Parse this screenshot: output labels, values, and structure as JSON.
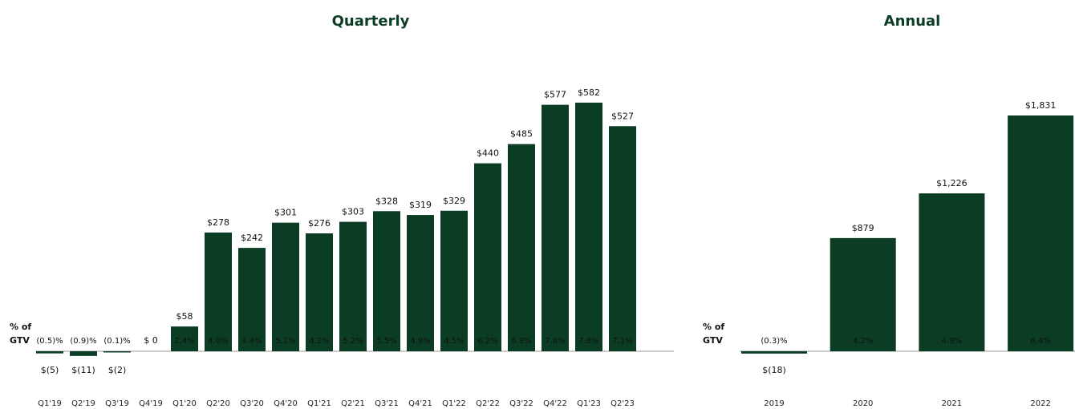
{
  "chart_data": [
    {
      "type": "bar",
      "title": "Quarterly",
      "color": "#0b3d25",
      "gtv_axis_label": [
        "% of",
        "GTV"
      ],
      "categories": [
        "Q1'19",
        "Q2'19",
        "Q3'19",
        "Q4'19",
        "Q1'20",
        "Q2'20",
        "Q3'20",
        "Q4'20",
        "Q1'21",
        "Q2'21",
        "Q3'21",
        "Q4'21",
        "Q1'22",
        "Q2'22",
        "Q3'22",
        "Q4'22",
        "Q1'23",
        "Q2'23"
      ],
      "values": [
        -5,
        -11,
        -2,
        0,
        58,
        278,
        242,
        301,
        276,
        303,
        328,
        319,
        329,
        440,
        485,
        577,
        582,
        527
      ],
      "value_labels": [
        "$(5)",
        "$(11)",
        "$(2)",
        "$ 0",
        "$58",
        "$278",
        "$242",
        "$301",
        "$276",
        "$303",
        "$328",
        "$319",
        "$329",
        "$440",
        "$485",
        "$577",
        "$582",
        "$527"
      ],
      "gtv_labels": [
        "(0.5)%",
        "(0.9)%",
        "(0.1)%",
        null,
        "2.4%",
        "4.0%",
        "4.4%",
        "5.1%",
        "4.2%",
        "5.2%",
        "5.5%",
        "4.9%",
        "4.5%",
        "6.2%",
        "6.9%",
        "7.8%",
        "7.8%",
        "7.1%"
      ]
    },
    {
      "type": "bar",
      "title": "Annual",
      "color": "#0b3d25",
      "gtv_axis_label": [
        "% of",
        "GTV"
      ],
      "categories": [
        "2019",
        "2020",
        "2021",
        "2022"
      ],
      "values": [
        -18,
        879,
        1226,
        1831
      ],
      "value_labels": [
        "$(18)",
        "$879",
        "$1,226",
        "$1,831"
      ],
      "gtv_labels": [
        "(0.3)%",
        "4.2%",
        "4.9%",
        "6.4%"
      ]
    }
  ]
}
